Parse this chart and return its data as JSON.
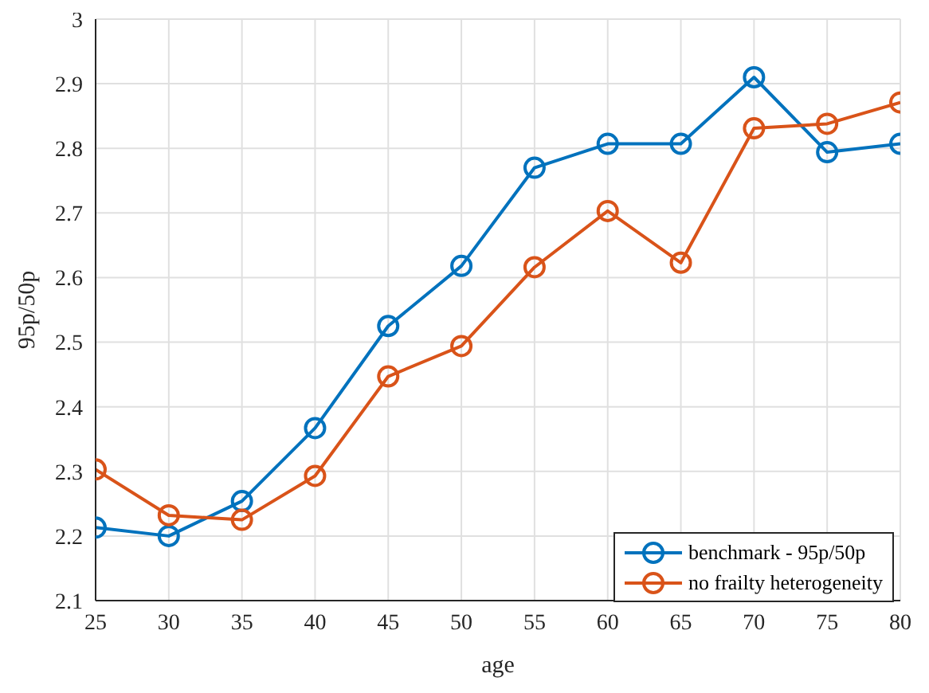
{
  "chart_data": {
    "type": "line",
    "xlabel": "age",
    "ylabel": "95p/50p",
    "x": [
      25,
      30,
      35,
      40,
      45,
      50,
      55,
      60,
      65,
      70,
      75,
      80
    ],
    "series": [
      {
        "name": "benchmark - 95p/50p",
        "color": "#0072bd",
        "values": [
          2.213,
          2.2,
          2.254,
          2.367,
          2.525,
          2.618,
          2.77,
          2.807,
          2.807,
          2.91,
          2.794,
          2.807
        ]
      },
      {
        "name": "no frailty heterogeneity",
        "color": "#d95319",
        "values": [
          2.303,
          2.232,
          2.225,
          2.293,
          2.447,
          2.494,
          2.616,
          2.703,
          2.623,
          2.831,
          2.838,
          2.871
        ]
      }
    ],
    "xlim": [
      25,
      80
    ],
    "xticks": [
      25,
      30,
      35,
      40,
      45,
      50,
      55,
      60,
      65,
      70,
      75,
      80
    ],
    "ylim": [
      2.1,
      3
    ],
    "yticks": [
      2.1,
      2.2,
      2.3,
      2.4,
      2.5,
      2.6,
      2.7,
      2.8,
      2.9,
      3
    ],
    "grid": true,
    "legend": "bottom right",
    "marker": "circle",
    "line_style": "solid"
  }
}
